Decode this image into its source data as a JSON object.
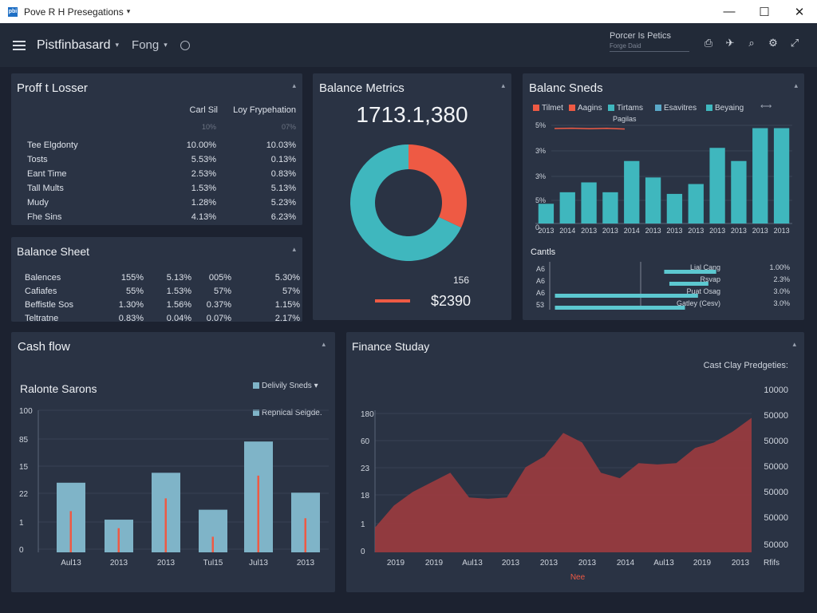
{
  "window": {
    "title": "Pove R H Presegations",
    "app_icon": "pbi",
    "controls": [
      "—",
      "☐",
      "✕"
    ]
  },
  "toolbar": {
    "title": "Pistfinbasard",
    "menu": "Fong",
    "right_title": "Porcer Is Petics",
    "right_sub": "Forge Daid"
  },
  "profit_loss": {
    "title": "Proff t Losser",
    "col1": "Carl Sil",
    "col2": "Loy Frypehation",
    "sub1": "10%",
    "sub2": "07%",
    "rows": [
      {
        "label": "Tee Elgdonty",
        "v1": "10.00%",
        "v2": "10.03%"
      },
      {
        "label": "Tosts",
        "v1": "5.53%",
        "v2": "0.13%"
      },
      {
        "label": "Eant Time",
        "v1": "2.53%",
        "v2": "0.83%"
      },
      {
        "label": "Tall Mults",
        "v1": "1.53%",
        "v2": "5.13%"
      },
      {
        "label": "Mudy",
        "v1": "1.28%",
        "v2": "5.23%"
      },
      {
        "label": "Fhe Sins",
        "v1": "4.13%",
        "v2": "6.23%"
      }
    ]
  },
  "balance_sheet": {
    "title": "Balance Sheet",
    "rows": [
      {
        "label": "Balences",
        "c": [
          "155%",
          "5.13%",
          "005%",
          "5.30%"
        ]
      },
      {
        "label": "Cafiafes",
        "c": [
          "55%",
          "1.53%",
          "57%",
          "57%"
        ]
      },
      {
        "label": "Beffistle Sos",
        "c": [
          "1.30%",
          "1.56%",
          "0.37%",
          "1.15%"
        ]
      },
      {
        "label": "Teltratne",
        "c": [
          "0.83%",
          "0.04%",
          "0.07%",
          "2.17%"
        ]
      }
    ]
  },
  "balance_metrics": {
    "title": "Balance Metrics",
    "big_value": "1713.1,380",
    "small_value": "156",
    "amount": "$2390",
    "colors": {
      "teal": "#3fb7be",
      "red": "#ee5a44"
    },
    "donut": [
      {
        "value": 68,
        "color": "#3fb7be"
      },
      {
        "value": 32,
        "color": "#ee5a44"
      }
    ]
  },
  "balance_sneds": {
    "title": "Balanc Sneds",
    "legend": [
      {
        "name": "Tilmet",
        "color": "#ee5a44"
      },
      {
        "name": "Aagins",
        "color": "#ee5a44"
      },
      {
        "name": "Tirtams",
        "color": "#3fb7be"
      },
      {
        "name": "Esavitres",
        "color": "#5aa8c8"
      },
      {
        "name": "Beyaing",
        "color": "#3fb7be"
      }
    ],
    "legend_sub": "Pagilas",
    "y_labels": [
      "5%",
      "3%",
      "3%",
      "5%",
      "0"
    ],
    "x_labels": [
      "2013",
      "2014",
      "2013",
      "2013",
      "2014",
      "2013",
      "2013",
      "2013",
      "2013",
      "2013",
      "2013",
      "2013"
    ],
    "bars": [
      0.12,
      0.19,
      0.25,
      0.19,
      0.38,
      0.28,
      0.18,
      0.24,
      0.46,
      0.38,
      0.58,
      0.58
    ],
    "red_line": [
      0.85,
      0.87,
      0.84,
      0.86,
      0.82
    ],
    "gantt_title": "Cantls",
    "gantt_left": [
      "A6",
      "A6",
      "A6",
      "53"
    ],
    "gantt_right_labels": [
      "Lial Cang",
      "Rsvap",
      "Puat Osag",
      "Gatley (Cesv)"
    ],
    "gantt_right_vals": [
      "1.00%",
      "2.3%",
      "3.0%",
      "3.0%"
    ],
    "gantt_bars": [
      {
        "start": 0.44,
        "end": 0.64
      },
      {
        "start": 0.46,
        "end": 0.61
      },
      {
        "start": 0.02,
        "end": 0.57
      },
      {
        "start": 0.02,
        "end": 0.52
      }
    ]
  },
  "cash_flow": {
    "title": "Cash flow",
    "subtitle": "Ralonte Sarons",
    "legend1": "Delivily Sneds",
    "legend2": "Repnical Seigde.",
    "y_labels": [
      "100",
      "85",
      "15",
      "22",
      "1",
      "0"
    ],
    "x_labels": [
      "Aul13",
      "2013",
      "2013",
      "Tul15",
      "Jul13",
      "2013"
    ],
    "bars": [
      0.49,
      0.23,
      0.56,
      0.3,
      0.78,
      0.42
    ],
    "lines": [
      0.29,
      0.17,
      0.38,
      0.11,
      0.54,
      0.24
    ]
  },
  "finance_study": {
    "title": "Finance Studay",
    "subtitle": "Cast Clay Predgeties:",
    "y_labels": [
      "180",
      "60",
      "23",
      "18",
      "1",
      "0"
    ],
    "x_labels": [
      "2019",
      "2019",
      "Aul13",
      "2013",
      "2013",
      "2013",
      "2014",
      "Aul13",
      "2019",
      "2013"
    ],
    "x_note": "Nee",
    "right_labels": [
      "10000",
      "50000",
      "50000",
      "50000",
      "50000",
      "50000",
      "50000"
    ],
    "right_last": "Rfifs",
    "area": [
      0.18,
      0.34,
      0.44,
      0.51,
      0.58,
      0.4,
      0.39,
      0.4,
      0.62,
      0.7,
      0.87,
      0.8,
      0.58,
      0.54,
      0.65,
      0.64,
      0.65,
      0.76,
      0.8,
      0.88,
      0.98
    ]
  }
}
